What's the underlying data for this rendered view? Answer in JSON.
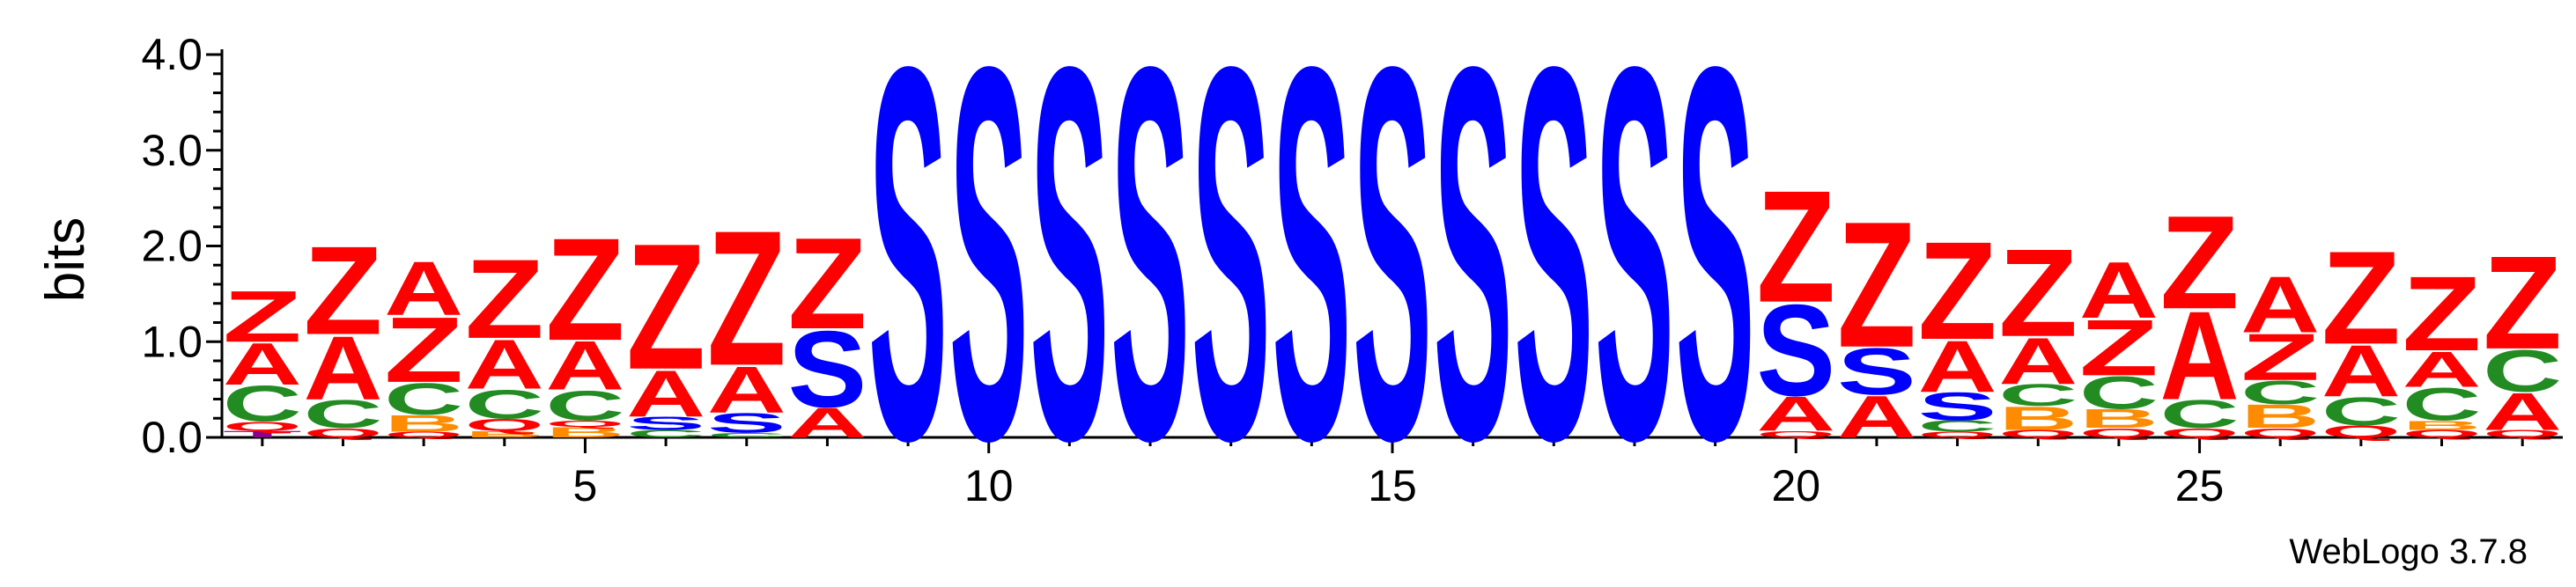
{
  "colors": {
    "Z": "#ff0000",
    "A": "#ff0000",
    "S": "#0000ff",
    "C": "#228b22",
    "B": "#ff8c00",
    "Q": "#ff0000",
    "T": "#8b008b",
    "axis": "#000000"
  },
  "credit": "WebLogo 3.7.8",
  "chart_data": {
    "type": "sequence-logo",
    "ylabel": "bits",
    "ylim": [
      0,
      4.0
    ],
    "yticks": [
      0.0,
      1.0,
      2.0,
      3.0,
      4.0
    ],
    "ytick_labels": [
      "0.0",
      "1.0",
      "2.0",
      "3.0",
      "4.0"
    ],
    "xlim": [
      0.5,
      29.5
    ],
    "xticks": [
      5,
      10,
      15,
      20,
      25
    ],
    "xtick_labels": [
      "5",
      "10",
      "15",
      "20",
      "25"
    ],
    "positions": [
      {
        "pos": 1,
        "stack": [
          [
            "T",
            0.07
          ],
          [
            "Q",
            0.1
          ],
          [
            "C",
            0.38
          ],
          [
            "A",
            0.45
          ],
          [
            "Z",
            0.55
          ]
        ]
      },
      {
        "pos": 2,
        "stack": [
          [
            "Q",
            0.1
          ],
          [
            "C",
            0.3
          ],
          [
            "A",
            0.68
          ],
          [
            "Z",
            0.95
          ]
        ]
      },
      {
        "pos": 3,
        "stack": [
          [
            "Q",
            0.06
          ],
          [
            "B",
            0.18
          ],
          [
            "C",
            0.34
          ],
          [
            "Z",
            0.7
          ],
          [
            "A",
            0.58
          ]
        ]
      },
      {
        "pos": 4,
        "stack": [
          [
            "B",
            0.07
          ],
          [
            "Q",
            0.13
          ],
          [
            "C",
            0.31
          ],
          [
            "A",
            0.53
          ],
          [
            "Z",
            0.85
          ]
        ]
      },
      {
        "pos": 5,
        "stack": [
          [
            "B",
            0.11
          ],
          [
            "Q",
            0.07
          ],
          [
            "C",
            0.32
          ],
          [
            "A",
            0.52
          ],
          [
            "Z",
            1.1
          ]
        ]
      },
      {
        "pos": 6,
        "stack": [
          [
            "C",
            0.08
          ],
          [
            "S",
            0.14
          ],
          [
            "A",
            0.5
          ],
          [
            "Z",
            1.35
          ]
        ]
      },
      {
        "pos": 7,
        "stack": [
          [
            "C",
            0.05
          ],
          [
            "S",
            0.21
          ],
          [
            "A",
            0.5
          ],
          [
            "Z",
            1.45
          ]
        ]
      },
      {
        "pos": 8,
        "stack": [
          [
            "A",
            0.32
          ],
          [
            "S",
            0.82
          ],
          [
            "Z",
            0.98
          ]
        ]
      },
      {
        "pos": 9,
        "stack": [
          [
            "S",
            4.0
          ]
        ]
      },
      {
        "pos": 10,
        "stack": [
          [
            "S",
            4.0
          ]
        ]
      },
      {
        "pos": 11,
        "stack": [
          [
            "S",
            4.0
          ]
        ]
      },
      {
        "pos": 12,
        "stack": [
          [
            "S",
            4.0
          ]
        ]
      },
      {
        "pos": 13,
        "stack": [
          [
            "S",
            4.0
          ]
        ]
      },
      {
        "pos": 14,
        "stack": [
          [
            "S",
            4.0
          ]
        ]
      },
      {
        "pos": 15,
        "stack": [
          [
            "S",
            4.0
          ]
        ]
      },
      {
        "pos": 16,
        "stack": [
          [
            "S",
            4.0
          ]
        ]
      },
      {
        "pos": 17,
        "stack": [
          [
            "S",
            4.0
          ]
        ]
      },
      {
        "pos": 18,
        "stack": [
          [
            "S",
            4.0
          ]
        ]
      },
      {
        "pos": 19,
        "stack": [
          [
            "S",
            4.0
          ]
        ]
      },
      {
        "pos": 20,
        "stack": [
          [
            "Q",
            0.07
          ],
          [
            "A",
            0.37
          ],
          [
            "S",
            0.98
          ],
          [
            "Z",
            1.2
          ]
        ]
      },
      {
        "pos": 21,
        "stack": [
          [
            "A",
            0.45
          ],
          [
            "S",
            0.5
          ],
          [
            "Z",
            1.35
          ]
        ]
      },
      {
        "pos": 22,
        "stack": [
          [
            "Q",
            0.06
          ],
          [
            "C",
            0.12
          ],
          [
            "S",
            0.3
          ],
          [
            "A",
            0.55
          ],
          [
            "Z",
            1.05
          ]
        ]
      },
      {
        "pos": 23,
        "stack": [
          [
            "Q",
            0.08
          ],
          [
            "B",
            0.25
          ],
          [
            "C",
            0.23
          ],
          [
            "A",
            0.5
          ],
          [
            "Z",
            0.94
          ]
        ]
      },
      {
        "pos": 24,
        "stack": [
          [
            "Q",
            0.1
          ],
          [
            "B",
            0.2
          ],
          [
            "C",
            0.35
          ],
          [
            "Z",
            0.6
          ],
          [
            "A",
            0.6
          ]
        ]
      },
      {
        "pos": 25,
        "stack": [
          [
            "Q",
            0.1
          ],
          [
            "C",
            0.3
          ],
          [
            "A",
            0.95
          ],
          [
            "Z",
            1.0
          ]
        ]
      },
      {
        "pos": 26,
        "stack": [
          [
            "Q",
            0.1
          ],
          [
            "B",
            0.25
          ],
          [
            "C",
            0.25
          ],
          [
            "Z",
            0.5
          ],
          [
            "A",
            0.6
          ]
        ]
      },
      {
        "pos": 27,
        "stack": [
          [
            "Q",
            0.13
          ],
          [
            "C",
            0.3
          ],
          [
            "A",
            0.55
          ],
          [
            "Z",
            1.0
          ]
        ]
      },
      {
        "pos": 28,
        "stack": [
          [
            "Q",
            0.08
          ],
          [
            "B",
            0.1
          ],
          [
            "C",
            0.35
          ],
          [
            "A",
            0.38
          ],
          [
            "Z",
            0.8
          ]
        ]
      },
      {
        "pos": 29,
        "stack": [
          [
            "Q",
            0.08
          ],
          [
            "A",
            0.4
          ],
          [
            "C",
            0.45
          ],
          [
            "Z",
            1.0
          ]
        ]
      }
    ]
  }
}
